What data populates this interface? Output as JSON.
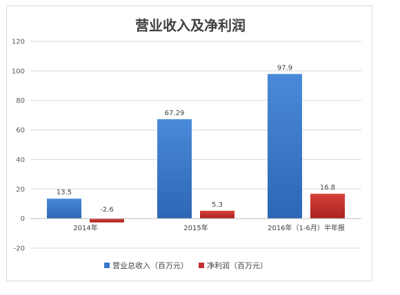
{
  "chart_data": {
    "type": "bar",
    "title": "营业收入及净利润",
    "categories": [
      "2014年",
      "2015年",
      "2016年（1-6月）半年报"
    ],
    "series": [
      {
        "name": "营业总收入（百万元）",
        "values": [
          13.5,
          67.29,
          97.9
        ],
        "labels": [
          "13.5",
          "67.29",
          "97.9"
        ],
        "color": "#3a78c9"
      },
      {
        "name": "净利润（百万元）",
        "values": [
          -2.6,
          5.3,
          16.8
        ],
        "labels": [
          "-2.6",
          "5.3",
          "16.8"
        ],
        "color": "#c0302e"
      }
    ],
    "yticks": [
      "120",
      "100",
      "80",
      "60",
      "40",
      "20",
      "0",
      "-20"
    ],
    "ylim": [
      -20,
      120
    ],
    "grid": true,
    "legend": "bottom"
  }
}
